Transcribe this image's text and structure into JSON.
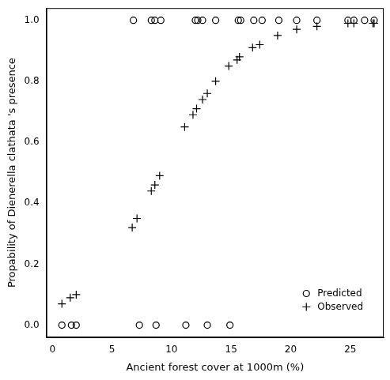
{
  "chart_data": {
    "type": "scatter",
    "x_label": "Ancient forest cover at 1000m (%)",
    "y_label": "Propability of Dienerella clathata 's presence",
    "xlim": [
      -0.5,
      27.8
    ],
    "ylim": [
      -0.04,
      1.04
    ],
    "xticks": [
      0,
      5,
      10,
      15,
      20,
      25
    ],
    "yticks": [
      {
        "value": 0,
        "label": "0.0"
      },
      {
        "value": 0.2,
        "label": "0.2"
      },
      {
        "value": 0.4,
        "label": "0.4"
      },
      {
        "value": 0.6,
        "label": "0.6"
      },
      {
        "value": 0.8,
        "label": "0.8"
      },
      {
        "value": 1,
        "label": "1.0"
      }
    ],
    "grid": false,
    "legend": "bottom right",
    "series": [
      {
        "name": "Predicted",
        "color": "#000000",
        "marker": "circle",
        "x": [
          0.8,
          1.6,
          2.0,
          7.3,
          8.7,
          11.2,
          13.0,
          14.9,
          6.8,
          8.3,
          8.6,
          9.1,
          12.0,
          12.2,
          12.6,
          13.7,
          15.6,
          15.8,
          16.9,
          17.6,
          19.0,
          20.5,
          22.2,
          24.8,
          25.3,
          26.2,
          27.0
        ],
        "values": [
          0,
          0,
          0,
          0,
          0,
          0,
          0,
          0,
          1,
          1,
          1,
          1,
          1,
          1,
          1,
          1,
          1,
          1,
          1,
          1,
          1,
          1,
          1,
          1,
          1,
          1,
          1
        ]
      },
      {
        "name": "Observed",
        "color": "#000000",
        "marker": "plus",
        "x": [
          0.8,
          1.5,
          2.0,
          6.7,
          7.1,
          8.3,
          8.6,
          9.0,
          11.1,
          11.8,
          12.1,
          12.6,
          13.0,
          13.7,
          14.8,
          15.5,
          15.7,
          16.8,
          17.4,
          18.9,
          20.5,
          22.2,
          24.8,
          25.3,
          26.9,
          27.0
        ],
        "values": [
          0.07,
          0.09,
          0.1,
          0.32,
          0.35,
          0.44,
          0.46,
          0.49,
          0.65,
          0.69,
          0.71,
          0.74,
          0.76,
          0.8,
          0.85,
          0.87,
          0.88,
          0.91,
          0.92,
          0.95,
          0.97,
          0.98,
          0.99,
          0.99,
          0.99,
          0.99
        ]
      }
    ]
  }
}
